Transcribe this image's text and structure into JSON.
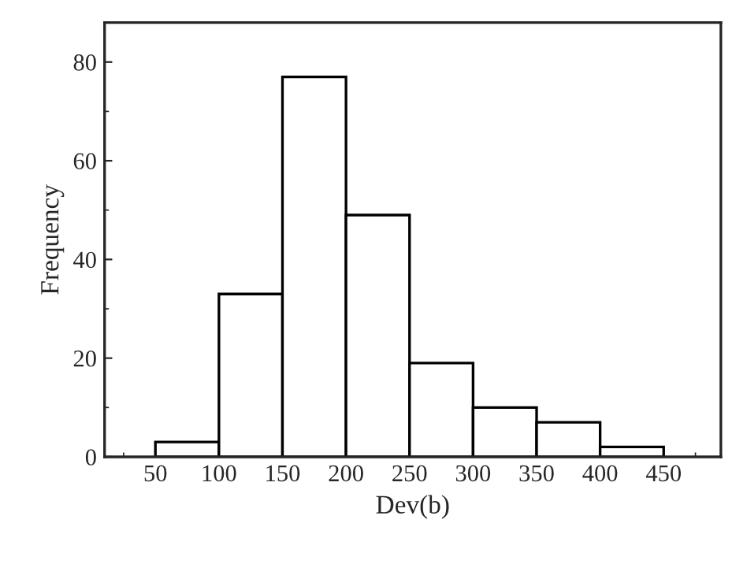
{
  "chart_data": {
    "type": "histogram",
    "xlabel": "Dev(b)",
    "ylabel": "Frequency",
    "bins": [
      50,
      100,
      150,
      200,
      250,
      300,
      350,
      400,
      450
    ],
    "values": [
      3,
      33,
      77,
      49,
      19,
      10,
      7,
      2
    ],
    "color": "#ffffff",
    "xlim": [
      10,
      495
    ],
    "ylim": [
      0,
      88
    ],
    "xticks": [
      50,
      100,
      150,
      200,
      250,
      300,
      350,
      400,
      450
    ],
    "yticks": [
      0,
      20,
      40,
      60,
      80
    ],
    "grid": false
  }
}
